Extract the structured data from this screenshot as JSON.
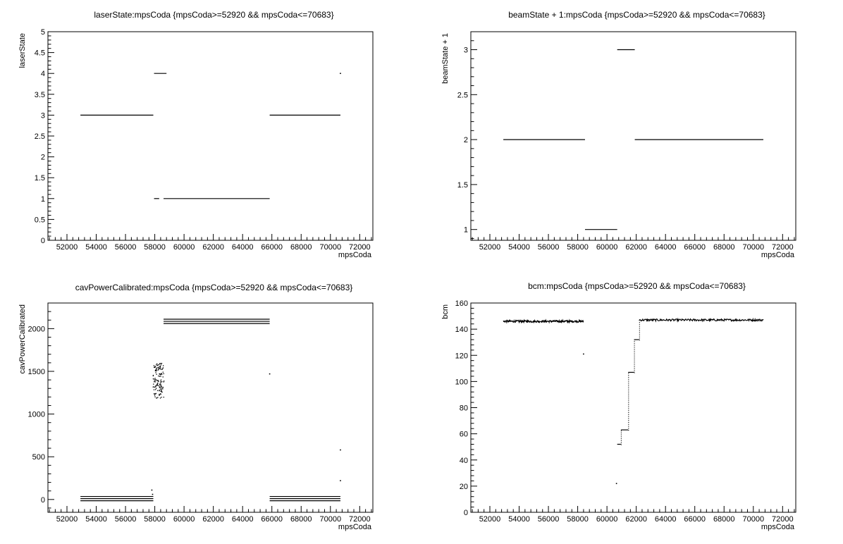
{
  "chart_data": [
    {
      "type": "scatter",
      "title": "laserState:mpsCoda {mpsCoda>=52920 && mpsCoda<=70683}",
      "xlabel": "mpsCoda",
      "ylabel": "laserState",
      "xlim": [
        50700,
        72900
      ],
      "ylim": [
        0,
        5
      ],
      "xticks": [
        52000,
        54000,
        56000,
        58000,
        60000,
        62000,
        64000,
        66000,
        68000,
        70000,
        72000
      ],
      "xtick_labels": [
        "52000",
        "54000",
        "56000",
        "58000",
        "60000",
        "62000",
        "64000",
        "66000",
        "68000",
        "70000",
        "72000"
      ],
      "yticks": [
        0,
        0.5,
        1,
        1.5,
        2,
        2.5,
        3,
        3.5,
        4,
        4.5,
        5
      ],
      "ytick_labels": [
        "0",
        "0.5",
        "1",
        "1.5",
        "2",
        "2.5",
        "3",
        "3.5",
        "4",
        "4.5",
        "5"
      ],
      "segments": [
        {
          "x0": 52920,
          "x1": 57900,
          "y": 3
        },
        {
          "x0": 57950,
          "x1": 58800,
          "y": 4
        },
        {
          "x0": 57950,
          "x1": 58300,
          "y": 1
        },
        {
          "x0": 58600,
          "x1": 65850,
          "y": 1
        },
        {
          "x0": 65850,
          "x1": 70683,
          "y": 3
        }
      ],
      "points": [
        {
          "x": 70683,
          "y": 4
        }
      ]
    },
    {
      "type": "scatter",
      "title": "beamState + 1:mpsCoda {mpsCoda>=52920 && mpsCoda<=70683}",
      "xlabel": "mpsCoda",
      "ylabel": "beamState + 1",
      "xlim": [
        50700,
        72900
      ],
      "ylim": [
        0.88,
        3.2
      ],
      "xticks": [
        52000,
        54000,
        56000,
        58000,
        60000,
        62000,
        64000,
        66000,
        68000,
        70000,
        72000
      ],
      "xtick_labels": [
        "52000",
        "54000",
        "56000",
        "58000",
        "60000",
        "62000",
        "64000",
        "66000",
        "68000",
        "70000",
        "72000"
      ],
      "yticks": [
        1,
        1.5,
        2,
        2.5,
        3
      ],
      "ytick_labels": [
        "1",
        "1.5",
        "2",
        "2.5",
        "3"
      ],
      "segments": [
        {
          "x0": 52920,
          "x1": 58500,
          "y": 2
        },
        {
          "x0": 58500,
          "x1": 60700,
          "y": 1
        },
        {
          "x0": 60700,
          "x1": 61900,
          "y": 3
        },
        {
          "x0": 61900,
          "x1": 70683,
          "y": 2
        }
      ],
      "points": []
    },
    {
      "type": "scatter",
      "title": "cavPowerCalibrated:mpsCoda {mpsCoda>=52920 && mpsCoda<=70683}",
      "xlabel": "mpsCoda",
      "ylabel": "cavPowerCalibrated",
      "xlim": [
        50700,
        72900
      ],
      "ylim": [
        -150,
        2300
      ],
      "xticks": [
        52000,
        54000,
        56000,
        58000,
        60000,
        62000,
        64000,
        66000,
        68000,
        70000,
        72000
      ],
      "xtick_labels": [
        "52000",
        "54000",
        "56000",
        "58000",
        "60000",
        "62000",
        "64000",
        "66000",
        "68000",
        "70000",
        "72000"
      ],
      "yticks": [
        0,
        500,
        1000,
        1500,
        2000
      ],
      "ytick_labels": [
        "0",
        "500",
        "1000",
        "1500",
        "2000"
      ],
      "segments": [
        {
          "x0": 52920,
          "x1": 57900,
          "y": 35
        },
        {
          "x0": 52920,
          "x1": 57900,
          "y": 10
        },
        {
          "x0": 52920,
          "x1": 57900,
          "y": -15
        },
        {
          "x0": 58600,
          "x1": 65850,
          "y": 2110
        },
        {
          "x0": 58600,
          "x1": 65850,
          "y": 2085
        },
        {
          "x0": 58600,
          "x1": 65850,
          "y": 2060
        },
        {
          "x0": 65850,
          "x1": 70683,
          "y": 35
        },
        {
          "x0": 65850,
          "x1": 70683,
          "y": 10
        },
        {
          "x0": 65850,
          "x1": 70683,
          "y": -15
        }
      ],
      "points": [
        {
          "x": 57800,
          "y": 110
        },
        {
          "x": 57850,
          "y": 60
        },
        {
          "x": 65850,
          "y": 1470
        },
        {
          "x": 70683,
          "y": 580
        },
        {
          "x": 70683,
          "y": 220
        }
      ],
      "clusters": [
        {
          "x0": 57850,
          "x1": 58600,
          "y_min": 1190,
          "y_max": 1600,
          "count": 140
        }
      ]
    },
    {
      "type": "scatter",
      "title": "bcm:mpsCoda {mpsCoda>=52920 && mpsCoda<=70683}",
      "xlabel": "mpsCoda",
      "ylabel": "bcm",
      "xlim": [
        50700,
        72900
      ],
      "ylim": [
        0,
        160
      ],
      "xticks": [
        52000,
        54000,
        56000,
        58000,
        60000,
        62000,
        64000,
        66000,
        68000,
        70000,
        72000
      ],
      "xtick_labels": [
        "52000",
        "54000",
        "56000",
        "58000",
        "60000",
        "62000",
        "64000",
        "66000",
        "68000",
        "70000",
        "72000"
      ],
      "yticks": [
        0,
        20,
        40,
        60,
        80,
        100,
        120,
        140,
        160
      ],
      "ytick_labels": [
        "0",
        "20",
        "40",
        "60",
        "80",
        "100",
        "120",
        "140",
        "160"
      ],
      "series_lines": [
        {
          "x0": 52920,
          "x1": 58400,
          "level": 146
        },
        {
          "x0": 62200,
          "x1": 70683,
          "level": 147
        }
      ],
      "steps": [
        {
          "x0": 60700,
          "x1": 60950,
          "y": 52
        },
        {
          "x0": 60950,
          "x1": 61450,
          "y": 63
        },
        {
          "x0": 61450,
          "x1": 61850,
          "y": 107
        },
        {
          "x0": 61850,
          "x1": 62200,
          "y": 132
        }
      ],
      "points": [
        {
          "x": 58400,
          "y": 121
        },
        {
          "x": 60650,
          "y": 22
        }
      ]
    }
  ]
}
